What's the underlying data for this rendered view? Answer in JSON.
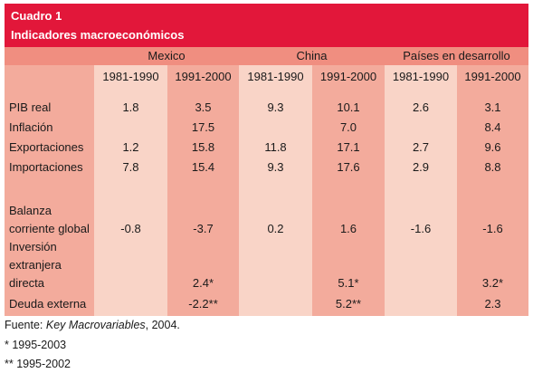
{
  "header": {
    "box_label": "Cuadro 1",
    "title": "Indicadores macroeconómicos"
  },
  "groups": [
    "Mexico",
    "China",
    "Países en desarrollo"
  ],
  "periods": [
    "1981-1990",
    "1991-2000"
  ],
  "rows": [
    {
      "label": "PIB real",
      "values": [
        "1.8",
        "3.5",
        "9.3",
        "10.1",
        "2.6",
        "3.1"
      ]
    },
    {
      "label": "Inflación",
      "values": [
        "",
        "17.5",
        "",
        "7.0",
        "",
        "8.4"
      ]
    },
    {
      "label": "Exportaciones",
      "values": [
        "1.2",
        "15.8",
        "11.8",
        "17.1",
        "2.7",
        "9.6"
      ]
    },
    {
      "label": "Importaciones",
      "values": [
        "7.8",
        "15.4",
        "9.3",
        "17.6",
        "2.9",
        "8.8"
      ]
    },
    {
      "label": "Balanza corriente global",
      "values": [
        "-0.8",
        "-3.7",
        "0.2",
        "1.6",
        "-1.6",
        "-1.6"
      ]
    },
    {
      "label": "Inversión extranjera directa",
      "values": [
        "",
        "2.4*",
        "",
        "5.1*",
        "",
        "3.2*"
      ]
    },
    {
      "label": "Deuda externa",
      "values": [
        "",
        "-2.2**",
        "",
        "5.2**",
        "",
        "2.3"
      ]
    }
  ],
  "footer": {
    "source_prefix": "Fuente: ",
    "source_title": "Key Macrovariables",
    "source_suffix": ", 2004.",
    "note1": "* 1995-2003",
    "note2": "** 1995-2002"
  },
  "colors": {
    "header_red": "#e2173a",
    "group_salmon": "#f08e80",
    "column_dark": "#f3ab9c",
    "column_light": "#f9d4c7"
  }
}
